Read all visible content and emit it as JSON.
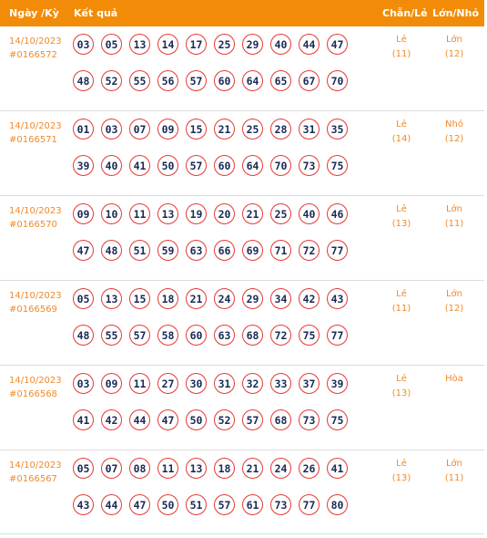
{
  "header": {
    "date_period": "Ngày /Kỳ",
    "result": "Kết quả",
    "even_odd": "Chẵn/Lẻ",
    "big_small": "Lớn/Nhỏ"
  },
  "rows": [
    {
      "date": "14/10/2023",
      "period": "#0166572",
      "numbers": [
        "03",
        "05",
        "13",
        "14",
        "17",
        "25",
        "29",
        "40",
        "44",
        "47",
        "48",
        "52",
        "55",
        "56",
        "57",
        "60",
        "64",
        "65",
        "67",
        "70"
      ],
      "even_odd": "Lẻ",
      "even_odd_count": "(11)",
      "big_small": "Lớn",
      "big_small_count": "(12)"
    },
    {
      "date": "14/10/2023",
      "period": "#0166571",
      "numbers": [
        "01",
        "03",
        "07",
        "09",
        "15",
        "21",
        "25",
        "28",
        "31",
        "35",
        "39",
        "40",
        "41",
        "50",
        "57",
        "60",
        "64",
        "70",
        "73",
        "75"
      ],
      "even_odd": "Lẻ",
      "even_odd_count": "(14)",
      "big_small": "Nhỏ",
      "big_small_count": "(12)"
    },
    {
      "date": "14/10/2023",
      "period": "#0166570",
      "numbers": [
        "09",
        "10",
        "11",
        "13",
        "19",
        "20",
        "21",
        "25",
        "40",
        "46",
        "47",
        "48",
        "51",
        "59",
        "63",
        "66",
        "69",
        "71",
        "72",
        "77"
      ],
      "even_odd": "Lẻ",
      "even_odd_count": "(13)",
      "big_small": "Lớn",
      "big_small_count": "(11)"
    },
    {
      "date": "14/10/2023",
      "period": "#0166569",
      "numbers": [
        "05",
        "13",
        "15",
        "18",
        "21",
        "24",
        "29",
        "34",
        "42",
        "43",
        "48",
        "55",
        "57",
        "58",
        "60",
        "63",
        "68",
        "72",
        "75",
        "77"
      ],
      "even_odd": "Lẻ",
      "even_odd_count": "(11)",
      "big_small": "Lớn",
      "big_small_count": "(12)"
    },
    {
      "date": "14/10/2023",
      "period": "#0166568",
      "numbers": [
        "03",
        "09",
        "11",
        "27",
        "30",
        "31",
        "32",
        "33",
        "37",
        "39",
        "41",
        "42",
        "44",
        "47",
        "50",
        "52",
        "57",
        "68",
        "73",
        "75"
      ],
      "even_odd": "Lẻ",
      "even_odd_count": "(13)",
      "big_small": "Hòa",
      "big_small_count": ""
    },
    {
      "date": "14/10/2023",
      "period": "#0166567",
      "numbers": [
        "05",
        "07",
        "08",
        "11",
        "13",
        "18",
        "21",
        "24",
        "26",
        "41",
        "43",
        "44",
        "47",
        "50",
        "51",
        "57",
        "61",
        "73",
        "77",
        "80"
      ],
      "even_odd": "Lẻ",
      "even_odd_count": "(13)",
      "big_small": "Lớn",
      "big_small_count": "(11)"
    }
  ]
}
